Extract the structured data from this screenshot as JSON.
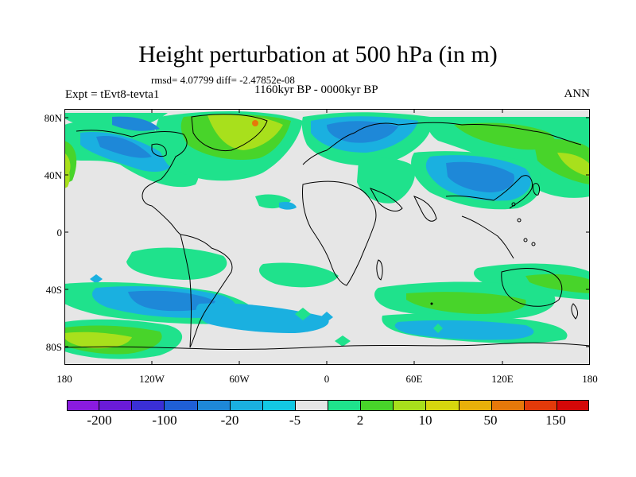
{
  "title": "Height perturbation at 500 hPa (in m)",
  "stats_line": "rmsd= 4.07799 diff= -2.47852e-08",
  "experiment": "Expt = tEvt8-tevta1",
  "period": "1160kyr BP - 0000kyr BP",
  "season": "ANN",
  "lat_labels": [
    "80N",
    "40N",
    "0",
    "40S",
    "80S"
  ],
  "lon_labels": [
    "180",
    "120W",
    "60W",
    "0",
    "60E",
    "120E",
    "180"
  ],
  "colorbar": {
    "colors": [
      "#8a1be0",
      "#6a1bd8",
      "#3a2fd6",
      "#1f5fd6",
      "#1e88d8",
      "#1ab0e0",
      "#13c8e3",
      "#e6e6e6",
      "#1fe28c",
      "#48d42a",
      "#a8e01c",
      "#d6d60e",
      "#e8b00a",
      "#e6780a",
      "#e23a0a",
      "#d40808"
    ],
    "labels": [
      "-200",
      "-100",
      "-20",
      "-5",
      "2",
      "10",
      "50",
      "150"
    ]
  },
  "field_colors": {
    "neutral": "#e6e6e6",
    "light_blue": "#1ab0e0",
    "mid_blue": "#1e88d8",
    "blue": "#1f5fd6",
    "green": "#1fe28c",
    "lime": "#48d42a",
    "yellow_green": "#a8e01c",
    "orange": "#e6780a"
  }
}
